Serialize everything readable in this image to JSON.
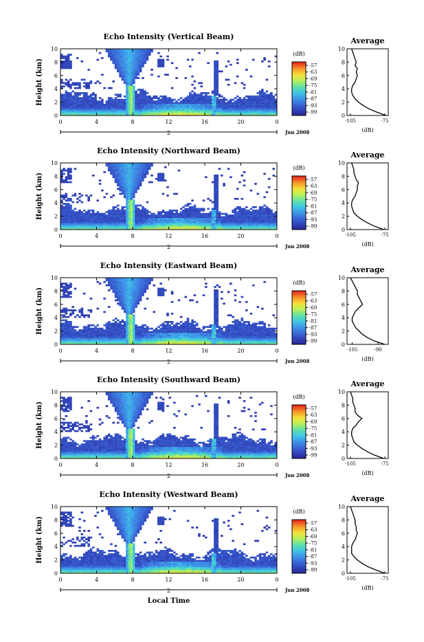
{
  "figure": {
    "bottom_label": "Local Time",
    "colorbar_unit": "(dB)",
    "colorbar_ticks": [
      "-57",
      "-63",
      "-69",
      "-75",
      "-81",
      "-87",
      "-93",
      "-99"
    ],
    "colorbar_colors": [
      "#2a1f8a",
      "#2f3fb5",
      "#3a66d6",
      "#3f95e8",
      "#3fc7e6",
      "#5fe0a8",
      "#b6f05a",
      "#f3e23a",
      "#f79a2a",
      "#e8311e"
    ],
    "date_label": "Jun 2008",
    "day_label": "2",
    "ylabel": "Height (km)",
    "average_title": "Average",
    "average_xlabel": "(dB)"
  },
  "chart_data": [
    {
      "type": "heatmap",
      "title": "Echo Intensity (Vertical Beam)",
      "ylabel": "Height (km)",
      "xlabel": "Local Time",
      "x_ticks": [
        "0",
        "4",
        "8",
        "12",
        "16",
        "20",
        "0"
      ],
      "y_ticks": [
        "0",
        "2",
        "4",
        "6",
        "8",
        "10"
      ],
      "xlim": [
        0,
        24
      ],
      "ylim": [
        0,
        10
      ],
      "colorbar": {
        "unit": "(dB)",
        "ticks": [
          -57,
          -63,
          -69,
          -75,
          -81,
          -87,
          -93,
          -99
        ]
      },
      "average_profile": {
        "title": "Average",
        "xlabel": "(dB)",
        "x_ticks": [
          "-105",
          "-75"
        ],
        "xlim": [
          -108,
          -72
        ],
        "height_km": [
          0,
          0.5,
          1,
          1.5,
          2,
          2.5,
          3,
          3.5,
          4,
          4.5,
          5,
          5.5,
          6,
          6.5,
          7,
          7.5,
          8,
          8.5,
          9,
          9.5,
          10
        ],
        "db": [
          -74,
          -82,
          -89,
          -94,
          -98,
          -101,
          -103,
          -104,
          -104,
          -103,
          -101,
          -100,
          -99,
          -100,
          -99,
          -101,
          -100,
          -101,
          -102,
          -103,
          -104
        ]
      }
    },
    {
      "type": "heatmap",
      "title": "Echo Intensity (Northward Beam)",
      "ylabel": "Height (km)",
      "xlabel": "Local Time",
      "x_ticks": [
        "0",
        "4",
        "8",
        "12",
        "16",
        "20",
        "0"
      ],
      "y_ticks": [
        "0",
        "2",
        "4",
        "6",
        "8",
        "10"
      ],
      "xlim": [
        0,
        24
      ],
      "ylim": [
        0,
        10
      ],
      "colorbar": {
        "unit": "(dB)",
        "ticks": [
          -57,
          -63,
          -69,
          -75,
          -81,
          -87,
          -93,
          -99
        ]
      },
      "average_profile": {
        "title": "Average",
        "xlabel": "(dB)",
        "x_ticks": [
          "-105",
          "-75"
        ],
        "xlim": [
          -108,
          -72
        ],
        "height_km": [
          0,
          0.5,
          1,
          1.5,
          2,
          2.5,
          3,
          3.5,
          4,
          4.5,
          5,
          5.5,
          6,
          6.5,
          7,
          7.5,
          8,
          8.5,
          9,
          9.5,
          10
        ],
        "db": [
          -76,
          -84,
          -90,
          -95,
          -99,
          -102,
          -103,
          -104,
          -104,
          -103,
          -101,
          -100,
          -99,
          -99,
          -98,
          -100,
          -101,
          -102,
          -102,
          -103,
          -104
        ]
      }
    },
    {
      "type": "heatmap",
      "title": "Echo Intensity (Eastward Beam)",
      "ylabel": "Height (km)",
      "xlabel": "Local Time",
      "x_ticks": [
        "0",
        "4",
        "8",
        "12",
        "16",
        "20",
        "0"
      ],
      "y_ticks": [
        "0",
        "2",
        "4",
        "6",
        "8",
        "10"
      ],
      "xlim": [
        0,
        24
      ],
      "ylim": [
        0,
        10
      ],
      "colorbar": {
        "unit": "(dB)",
        "ticks": [
          -57,
          -63,
          -69,
          -75,
          -81,
          -87,
          -93,
          -99
        ]
      },
      "average_profile": {
        "title": "Average",
        "xlabel": "(dB)",
        "x_ticks": [
          "-105",
          "-90"
        ],
        "xlim": [
          -108,
          -84
        ],
        "height_km": [
          0,
          0.5,
          1,
          1.5,
          2,
          2.5,
          3,
          3.5,
          4,
          4.5,
          5,
          5.5,
          6,
          6.5,
          7,
          7.5,
          8,
          8.5,
          9,
          9.5,
          10
        ],
        "db": [
          -86,
          -92,
          -96,
          -99,
          -101,
          -103,
          -104,
          -105,
          -105,
          -104,
          -103,
          -101,
          -99,
          -100,
          -101,
          -102,
          -102,
          -103,
          -104,
          -105,
          -106
        ]
      }
    },
    {
      "type": "heatmap",
      "title": "Echo Intensity (Southward Beam)",
      "ylabel": "Height (km)",
      "xlabel": "Local Time",
      "x_ticks": [
        "0",
        "4",
        "8",
        "12",
        "16",
        "20",
        "0"
      ],
      "y_ticks": [
        "0",
        "2",
        "4",
        "6",
        "8",
        "10"
      ],
      "xlim": [
        0,
        24
      ],
      "ylim": [
        0,
        10
      ],
      "colorbar": {
        "unit": "(dB)",
        "ticks": [
          -57,
          -63,
          -69,
          -75,
          -81,
          -87,
          -93,
          -99
        ]
      },
      "average_profile": {
        "title": "Average",
        "xlabel": "(dB)",
        "x_ticks": [
          "-105",
          "-75"
        ],
        "xlim": [
          -108,
          -72
        ],
        "height_km": [
          0,
          0.5,
          1,
          1.5,
          2,
          2.5,
          3,
          3.5,
          4,
          4.5,
          5,
          5.5,
          6,
          6.5,
          7,
          7.5,
          8,
          8.5,
          9,
          9.5,
          10
        ],
        "db": [
          -76,
          -84,
          -90,
          -95,
          -99,
          -102,
          -103,
          -104,
          -104,
          -103,
          -100,
          -98,
          -95,
          -99,
          -101,
          -101,
          -102,
          -103,
          -103,
          -104,
          -105
        ]
      }
    },
    {
      "type": "heatmap",
      "title": "Echo Intensity (Westward Beam)",
      "ylabel": "Height (km)",
      "xlabel": "Local Time",
      "x_ticks": [
        "0",
        "4",
        "8",
        "12",
        "16",
        "20",
        "0"
      ],
      "y_ticks": [
        "0",
        "2",
        "4",
        "6",
        "8",
        "10"
      ],
      "xlim": [
        0,
        24
      ],
      "ylim": [
        0,
        10
      ],
      "colorbar": {
        "unit": "(dB)",
        "ticks": [
          -57,
          -63,
          -69,
          -75,
          -81,
          -87,
          -93,
          -99
        ]
      },
      "average_profile": {
        "title": "Average",
        "xlabel": "(dB)",
        "x_ticks": [
          "-105",
          "-75"
        ],
        "xlim": [
          -108,
          -72
        ],
        "height_km": [
          0,
          0.5,
          1,
          1.5,
          2,
          2.5,
          3,
          3.5,
          4,
          4.5,
          5,
          5.5,
          6,
          6.5,
          7,
          7.5,
          8,
          8.5,
          9,
          9.5,
          10
        ],
        "db": [
          -75,
          -83,
          -90,
          -95,
          -99,
          -102,
          -104,
          -104,
          -104,
          -103,
          -101,
          -100,
          -99,
          -100,
          -100,
          -101,
          -101,
          -102,
          -103,
          -104,
          -105
        ]
      }
    }
  ]
}
